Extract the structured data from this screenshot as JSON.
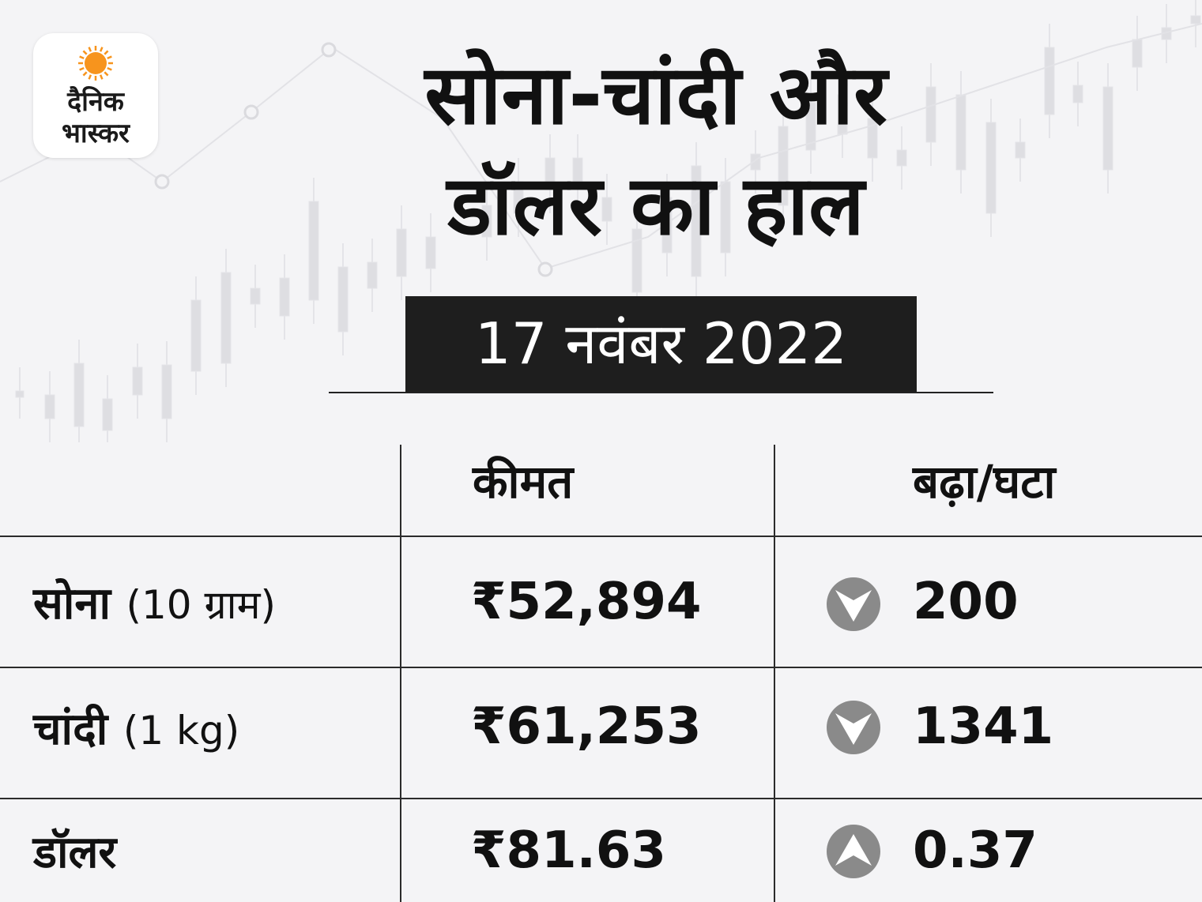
{
  "brand": {
    "line1": "दैनिक",
    "line2": "भास्कर",
    "accent": "#f7941d"
  },
  "header": {
    "title_line1": "सोना-चांदी और",
    "title_line2": "डॉलर का हाल",
    "date": "17 नवंबर 2022"
  },
  "table": {
    "columns": [
      "",
      "कीमत",
      "बढ़ा/घटा"
    ],
    "rows": [
      {
        "name": "सोना",
        "unit": "(10 ग्राम)",
        "price": "₹52,894",
        "change": "200",
        "direction": "down",
        "icon": "down-arrow-icon"
      },
      {
        "name": "चांदी",
        "unit": "(1 kg)",
        "price": "₹61,253",
        "change": "1341",
        "direction": "down",
        "icon": "down-arrow-icon"
      },
      {
        "name": "डॉलर",
        "unit": "",
        "price": "₹81.63",
        "change": "0.37",
        "direction": "up",
        "icon": "up-arrow-icon"
      }
    ]
  },
  "colors": {
    "arrow_bg": "#8a8a8a",
    "text": "#111111",
    "background": "#f4f4f6",
    "date_bg": "#1e1e1e"
  }
}
